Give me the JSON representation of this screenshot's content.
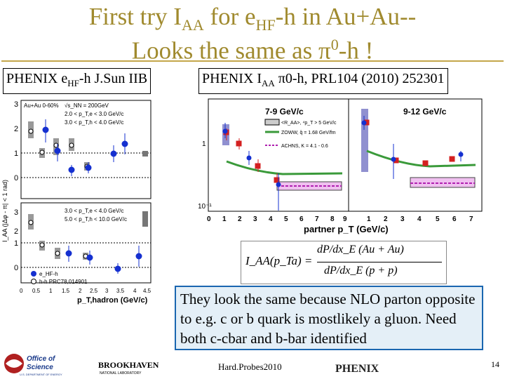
{
  "title": {
    "line1_pre": "First try I",
    "line1_sub": "AA",
    "line1_mid": " for e",
    "line1_sub2": "HF",
    "line1_post": "-h in Au+Au--",
    "line2_pre": "Looks   the same as ",
    "line2_pi": "π",
    "line2_sup": "0",
    "line2_post": "-h !"
  },
  "left_box": {
    "pre": "PHENIX e",
    "sub": "HF",
    "post": "-h J.Sun IIB"
  },
  "right_box": {
    "pre": "PHENIX I",
    "sub": "AA",
    "post": " π0-h, PRL104 (2010) 252301"
  },
  "left_plot": {
    "top_legend": [
      "Au+Au 0-60%",
      "√s_NN = 200GeV",
      "2.0 < p_T,e < 3.0 GeV/c",
      "3.0 < p_T,h < 4.0 GeV/c"
    ],
    "bottom_legend": [
      "3.0 < p_T,e < 4.0 GeV/c",
      "5.0 < p_T,h < 10.0 GeV/c"
    ],
    "series_legend": [
      "e_HF-h",
      "h-h PRC78,014901"
    ],
    "ylabel": "I_AA (|Δφ - π| < 1 rad)",
    "xlabel": "p_T,hadron (GeV/c)",
    "yticks_top": [
      "3",
      "2",
      "1",
      "0"
    ],
    "yticks_bottom": [
      "3",
      "2",
      "1",
      "0"
    ],
    "xticks": [
      "0",
      "0.5",
      "1",
      "1.5",
      "2",
      "2.5",
      "3",
      "3.5",
      "4",
      "4.5"
    ]
  },
  "right_plot": {
    "panel1_title": "7-9 GeV/c",
    "panel2_title": "9-12 GeV/c",
    "legend": [
      "<R_AA>, ⁴p_T > 5 GeV/c",
      "ZOWW, q̂ = 1.68 GeV/fm",
      "ACHNS, K = 4.1 - 0.6"
    ],
    "yticks": [
      "1",
      "10⁻¹"
    ],
    "xticks": [
      "0",
      "1",
      "2",
      "3",
      "4",
      "5",
      "6",
      "7",
      "8",
      "9",
      "1",
      "2",
      "3",
      "4",
      "5",
      "6",
      "7"
    ],
    "xlabel": "partner p_T (GeV/c)"
  },
  "equation": {
    "lhs": "I_AA(p_Ta) =",
    "numerator": "dP/dx_E (Au + Au)",
    "denominator": "dP/dx_E (p + p)"
  },
  "note": "They look the same because NLO parton opposite to e.g. c or b quark is mostlikely a gluon. Need both c-cbar and b-bar identified",
  "footer": {
    "doe_line1": "Office of",
    "doe_line2": "Science",
    "doe_line3": "U.S. DEPARTMENT OF ENERGY",
    "bnl": "BROOKHAVEN",
    "bnl_sub": "NATIONAL LABORATORY",
    "conference": "Hard.Probes2010",
    "phenix": "PHENIX",
    "slide_number": "14"
  },
  "colors": {
    "title": "#a08a2e",
    "red": "#d42020",
    "blue": "#1530d0",
    "green": "#3a9a3a",
    "magenta": "#d060d0"
  }
}
